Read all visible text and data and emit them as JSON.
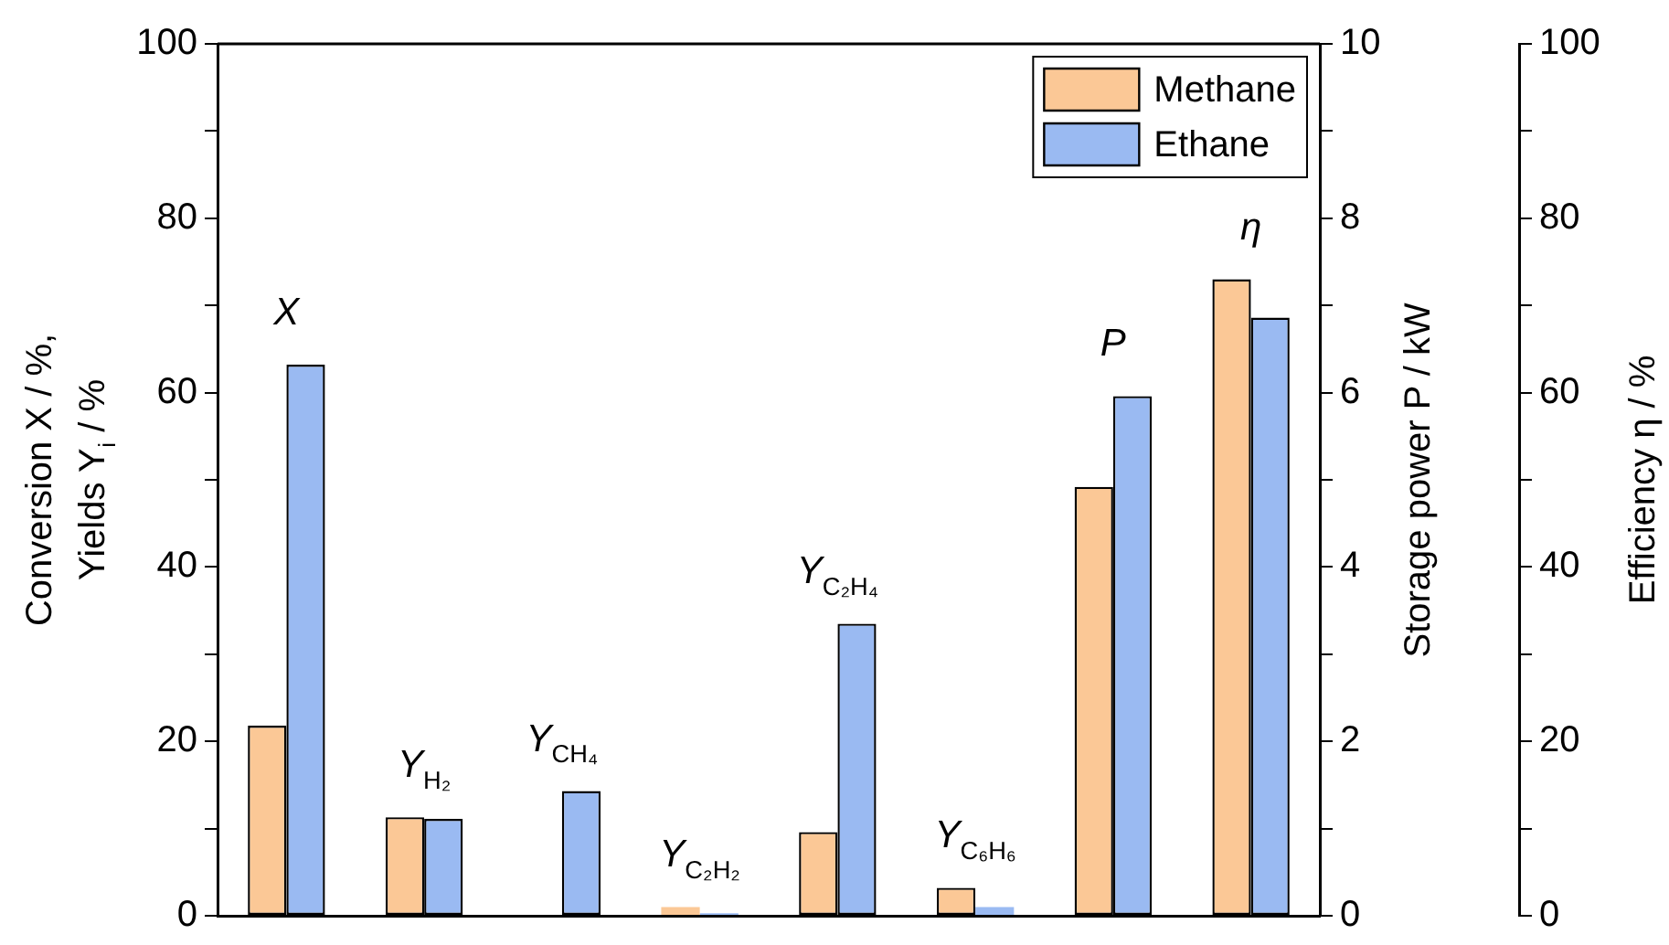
{
  "chart_data": {
    "type": "bar",
    "ylabel": "Conversion X / %, Yields Y$_{i}$ / %",
    "y2label": "Storage power P / kW",
    "y3label": "Efficiency η / %",
    "categories": [
      null,
      null,
      null,
      null,
      null,
      null,
      null,
      null
    ],
    "series": [
      {
        "name": "Methane",
        "color": "#fbc896",
        "values": [
          21.8,
          11.3,
          0,
          1.0,
          9.6,
          3.2,
          null,
          null
        ]
      },
      {
        "name": "Ethane",
        "color": "#9abaf2",
        "values": [
          63.2,
          11.1,
          14.3,
          0.3,
          33.5,
          1.0,
          null,
          null
        ]
      },
      {
        "color": "#fbc896",
        "axis": "y2",
        "values": [
          null,
          null,
          null,
          null,
          null,
          null,
          4.92,
          null
        ]
      },
      {
        "color": "#9abaf2",
        "axis": "y2",
        "values": [
          null,
          null,
          null,
          null,
          null,
          null,
          5.96,
          null
        ]
      },
      {
        "color": "#fbc896",
        "axis": "y3",
        "values": [
          null,
          null,
          null,
          null,
          null,
          null,
          null,
          73.0
        ]
      },
      {
        "color": "#9abaf2",
        "axis": "y3",
        "values": [
          null,
          null,
          null,
          null,
          null,
          null,
          null,
          68.6
        ]
      }
    ],
    "ylim": [
      0,
      100
    ],
    "yticks": [
      0,
      {
        "value": 10,
        "label": null
      },
      20,
      {
        "value": 30,
        "label": null
      },
      40,
      {
        "value": 50,
        "label": null
      },
      60,
      {
        "value": 70,
        "label": null
      },
      80,
      {
        "value": 90,
        "label": null
      },
      100
    ],
    "y2lim": [
      0,
      10
    ],
    "y2ticks": [
      0,
      {
        "value": 1,
        "label": null
      },
      2,
      {
        "value": 3,
        "label": null
      },
      4,
      {
        "value": 5,
        "label": null
      },
      6,
      {
        "value": 7,
        "label": null
      },
      8,
      {
        "value": 9,
        "label": null
      },
      10
    ],
    "y3lim": [
      0,
      100
    ],
    "y3ticks": [
      0,
      {
        "value": 10,
        "label": null
      },
      20,
      {
        "value": 30,
        "label": null
      },
      40,
      {
        "value": 50,
        "label": null
      },
      60,
      {
        "value": 70,
        "label": null
      },
      80,
      {
        "value": 90,
        "label": null
      },
      100
    ],
    "annotations": [
      "X",
      "Y$_{H₂}$",
      "Y$_{CH₄}$",
      "Y$_{C₂H₂}$",
      "Y$_{C₂H₄}$",
      "Y$_{C₆H₆}$",
      "P",
      "η"
    ],
    "grid": false,
    "legend": "top right"
  }
}
